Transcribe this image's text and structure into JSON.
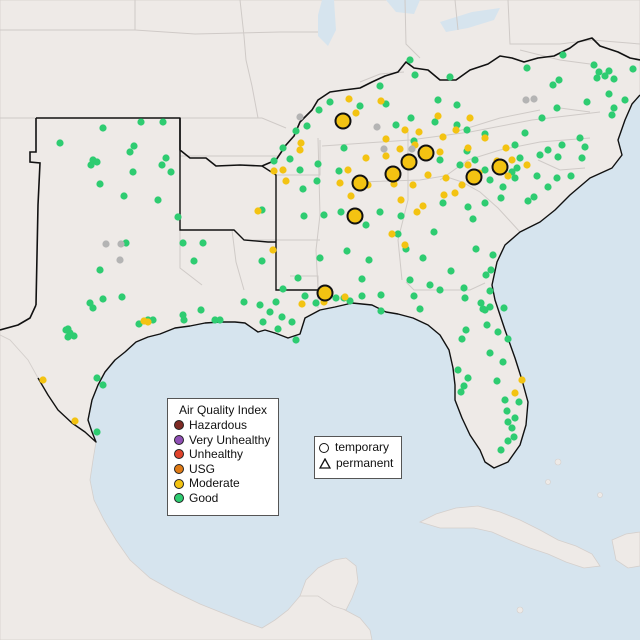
{
  "legend": {
    "title": "Air Quality Index",
    "categories": [
      {
        "label": "Hazardous",
        "color": "#7e2a24"
      },
      {
        "label": "Very Unhealthy",
        "color": "#8f4fb5"
      },
      {
        "label": "Unhealthy",
        "color": "#e0432b"
      },
      {
        "label": "USG",
        "color": "#e07b15"
      },
      {
        "label": "Moderate",
        "color": "#f3c312"
      },
      {
        "label": "Good",
        "color": "#2ecc71"
      }
    ]
  },
  "monitor_types": {
    "temporary": "temporary",
    "permanent": "permanent"
  },
  "colors": {
    "water": "#d6e4ee",
    "land": "#eeeae7",
    "no_data": "#b4b4b4"
  },
  "markers": {
    "good": [
      [
        60,
        143
      ],
      [
        103,
        128
      ],
      [
        141,
        122
      ],
      [
        163,
        122
      ],
      [
        134,
        146
      ],
      [
        130,
        152
      ],
      [
        93,
        160
      ],
      [
        97,
        162
      ],
      [
        91,
        165
      ],
      [
        162,
        165
      ],
      [
        166,
        158
      ],
      [
        133,
        172
      ],
      [
        171,
        172
      ],
      [
        100,
        184
      ],
      [
        124,
        196
      ],
      [
        158,
        200
      ],
      [
        178,
        217
      ],
      [
        183,
        243
      ],
      [
        203,
        243
      ],
      [
        194,
        261
      ],
      [
        126,
        243
      ],
      [
        100,
        270
      ],
      [
        90,
        303
      ],
      [
        93,
        308
      ],
      [
        68,
        329
      ],
      [
        70,
        333
      ],
      [
        74,
        336
      ],
      [
        68,
        337
      ],
      [
        66,
        330
      ],
      [
        103,
        299
      ],
      [
        122,
        297
      ],
      [
        183,
        315
      ],
      [
        184,
        320
      ],
      [
        201,
        310
      ],
      [
        215,
        320
      ],
      [
        244,
        302
      ],
      [
        260,
        305
      ],
      [
        270,
        312
      ],
      [
        282,
        317
      ],
      [
        278,
        329
      ],
      [
        292,
        322
      ],
      [
        296,
        340
      ],
      [
        276,
        302
      ],
      [
        263,
        322
      ],
      [
        283,
        289
      ],
      [
        298,
        278
      ],
      [
        305,
        296
      ],
      [
        316,
        303
      ],
      [
        336,
        298
      ],
      [
        344,
        298
      ],
      [
        350,
        301
      ],
      [
        362,
        296
      ],
      [
        381,
        295
      ],
      [
        381,
        311
      ],
      [
        420,
        309
      ],
      [
        414,
        296
      ],
      [
        440,
        290
      ],
      [
        465,
        298
      ],
      [
        481,
        303
      ],
      [
        483,
        309
      ],
      [
        490,
        307
      ],
      [
        504,
        308
      ],
      [
        487,
        325
      ],
      [
        466,
        330
      ],
      [
        485,
        310
      ],
      [
        490,
        291
      ],
      [
        486,
        275
      ],
      [
        493,
        255
      ],
      [
        491,
        270
      ],
      [
        476,
        249
      ],
      [
        473,
        219
      ],
      [
        468,
        207
      ],
      [
        443,
        203
      ],
      [
        434,
        232
      ],
      [
        423,
        258
      ],
      [
        406,
        249
      ],
      [
        398,
        234
      ],
      [
        401,
        216
      ],
      [
        366,
        225
      ],
      [
        380,
        212
      ],
      [
        347,
        251
      ],
      [
        369,
        260
      ],
      [
        362,
        279
      ],
      [
        410,
        280
      ],
      [
        430,
        285
      ],
      [
        451,
        271
      ],
      [
        464,
        288
      ],
      [
        320,
        258
      ],
      [
        262,
        261
      ],
      [
        262,
        210
      ],
      [
        304,
        216
      ],
      [
        324,
        215
      ],
      [
        341,
        212
      ],
      [
        303,
        189
      ],
      [
        317,
        181
      ],
      [
        300,
        170
      ],
      [
        318,
        164
      ],
      [
        339,
        171
      ],
      [
        344,
        148
      ],
      [
        319,
        110
      ],
      [
        330,
        102
      ],
      [
        307,
        126
      ],
      [
        296,
        131
      ],
      [
        283,
        148
      ],
      [
        290,
        159
      ],
      [
        274,
        161
      ],
      [
        360,
        106
      ],
      [
        386,
        104
      ],
      [
        380,
        86
      ],
      [
        410,
        60
      ],
      [
        415,
        75
      ],
      [
        438,
        100
      ],
      [
        435,
        122
      ],
      [
        414,
        141
      ],
      [
        411,
        118
      ],
      [
        396,
        125
      ],
      [
        457,
        125
      ],
      [
        457,
        105
      ],
      [
        450,
        77
      ],
      [
        467,
        130
      ],
      [
        485,
        134
      ],
      [
        467,
        151
      ],
      [
        440,
        160
      ],
      [
        460,
        165
      ],
      [
        475,
        160
      ],
      [
        485,
        170
      ],
      [
        490,
        180
      ],
      [
        503,
        187
      ],
      [
        512,
        172
      ],
      [
        520,
        158
      ],
      [
        515,
        145
      ],
      [
        525,
        133
      ],
      [
        542,
        118
      ],
      [
        557,
        108
      ],
      [
        553,
        85
      ],
      [
        559,
        80
      ],
      [
        527,
        68
      ],
      [
        563,
        55
      ],
      [
        594,
        65
      ],
      [
        599,
        72
      ],
      [
        597,
        78
      ],
      [
        605,
        76
      ],
      [
        609,
        71
      ],
      [
        614,
        79
      ],
      [
        633,
        69
      ],
      [
        625,
        100
      ],
      [
        614,
        108
      ],
      [
        612,
        115
      ],
      [
        609,
        94
      ],
      [
        587,
        102
      ],
      [
        562,
        145
      ],
      [
        548,
        150
      ],
      [
        540,
        155
      ],
      [
        537,
        176
      ],
      [
        548,
        187
      ],
      [
        558,
        157
      ],
      [
        585,
        147
      ],
      [
        582,
        158
      ],
      [
        580,
        138
      ],
      [
        501,
        198
      ],
      [
        485,
        203
      ],
      [
        515,
        178
      ],
      [
        534,
        197
      ],
      [
        557,
        178
      ],
      [
        571,
        176
      ],
      [
        528,
        201
      ],
      [
        517,
        168
      ],
      [
        462,
        339
      ],
      [
        490,
        353
      ],
      [
        458,
        370
      ],
      [
        468,
        378
      ],
      [
        461,
        392
      ],
      [
        497,
        381
      ],
      [
        503,
        362
      ],
      [
        498,
        332
      ],
      [
        508,
        339
      ],
      [
        507,
        411
      ],
      [
        512,
        428
      ],
      [
        514,
        437
      ],
      [
        508,
        441
      ],
      [
        501,
        450
      ],
      [
        508,
        422
      ],
      [
        515,
        418
      ],
      [
        519,
        402
      ],
      [
        505,
        400
      ],
      [
        464,
        386
      ],
      [
        97,
        378
      ],
      [
        103,
        385
      ],
      [
        97,
        432
      ],
      [
        148,
        320
      ],
      [
        153,
        320
      ],
      [
        139,
        324
      ],
      [
        220,
        320
      ]
    ],
    "moderate": [
      [
        349,
        99
      ],
      [
        356,
        113
      ],
      [
        381,
        101
      ],
      [
        438,
        116
      ],
      [
        443,
        137
      ],
      [
        405,
        130
      ],
      [
        386,
        139
      ],
      [
        386,
        156
      ],
      [
        366,
        158
      ],
      [
        348,
        170
      ],
      [
        340,
        183
      ],
      [
        351,
        196
      ],
      [
        368,
        185
      ],
      [
        394,
        184
      ],
      [
        401,
        200
      ],
      [
        413,
        185
      ],
      [
        423,
        206
      ],
      [
        444,
        195
      ],
      [
        462,
        185
      ],
      [
        428,
        175
      ],
      [
        400,
        149
      ],
      [
        415,
        145
      ],
      [
        468,
        148
      ],
      [
        485,
        138
      ],
      [
        506,
        148
      ],
      [
        512,
        160
      ],
      [
        527,
        165
      ],
      [
        497,
        161
      ],
      [
        508,
        176
      ],
      [
        468,
        165
      ],
      [
        440,
        152
      ],
      [
        446,
        178
      ],
      [
        455,
        193
      ],
      [
        479,
        173
      ],
      [
        456,
        130
      ],
      [
        470,
        118
      ],
      [
        392,
        234
      ],
      [
        405,
        245
      ],
      [
        417,
        212
      ],
      [
        419,
        132
      ],
      [
        300,
        150
      ],
      [
        301,
        143
      ],
      [
        283,
        170
      ],
      [
        274,
        171
      ],
      [
        286,
        181
      ],
      [
        258,
        211
      ],
      [
        273,
        250
      ],
      [
        302,
        304
      ],
      [
        345,
        297
      ],
      [
        324,
        302
      ],
      [
        148,
        322
      ],
      [
        144,
        321
      ],
      [
        43,
        380
      ],
      [
        75,
        421
      ],
      [
        515,
        393
      ],
      [
        522,
        380
      ]
    ],
    "no_data": [
      [
        106,
        244
      ],
      [
        121,
        244
      ],
      [
        120,
        260
      ],
      [
        300,
        117
      ],
      [
        377,
        127
      ],
      [
        384,
        149
      ],
      [
        412,
        149
      ],
      [
        526,
        100
      ],
      [
        534,
        99
      ]
    ],
    "moderate_temporary": [
      [
        343,
        121
      ],
      [
        426,
        153
      ],
      [
        409,
        162
      ],
      [
        393,
        174
      ],
      [
        360,
        183
      ],
      [
        355,
        216
      ],
      [
        474,
        177
      ],
      [
        500,
        167
      ],
      [
        325,
        293
      ]
    ]
  }
}
